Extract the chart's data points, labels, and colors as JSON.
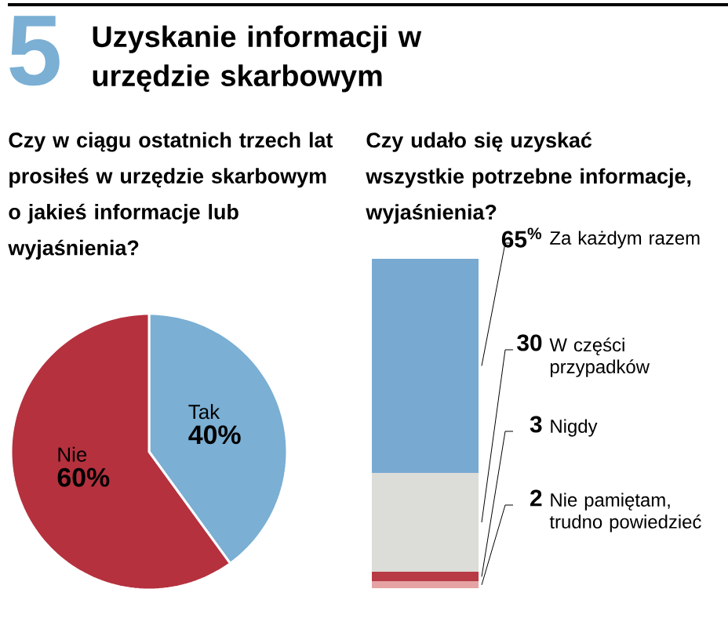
{
  "chart_data": [
    {
      "type": "pie",
      "title": "Uzyskanie informacji w urzędzie skarbowym",
      "subtitle": "Czy w ciągu ostatnich trzech lat prosiłeś w urzędzie skarbowym o jakieś informacje lub wyjaśnienia?",
      "annotations": [
        "5"
      ],
      "categories": [
        "Tak",
        "Nie"
      ],
      "values": [
        40,
        60
      ],
      "colors": [
        "#7bafd4",
        "#b5313e"
      ],
      "value_labels": [
        "40%",
        "60%"
      ]
    },
    {
      "type": "bar",
      "stacked": true,
      "title": "Czy udało się uzyskać wszystkie potrzebne informacje, wyjaśnienia?",
      "categories": [
        null
      ],
      "series": [
        {
          "name": "Nie pamiętam, trudno powiedzieć",
          "color": "#e6a3a3",
          "values": [
            2
          ],
          "value_labels": [
            "2"
          ]
        },
        {
          "name": "Nigdy",
          "color": "#b83a44",
          "values": [
            3
          ],
          "value_labels": [
            "3"
          ]
        },
        {
          "name": "W części przypadków",
          "color": "#dcdcd8",
          "values": [
            30
          ],
          "value_labels": [
            "30"
          ]
        },
        {
          "name": "Za każdym razem",
          "color": "#78a9d1",
          "values": [
            65
          ],
          "value_labels": [
            "65$^{%}$"
          ]
        }
      ]
    }
  ]
}
